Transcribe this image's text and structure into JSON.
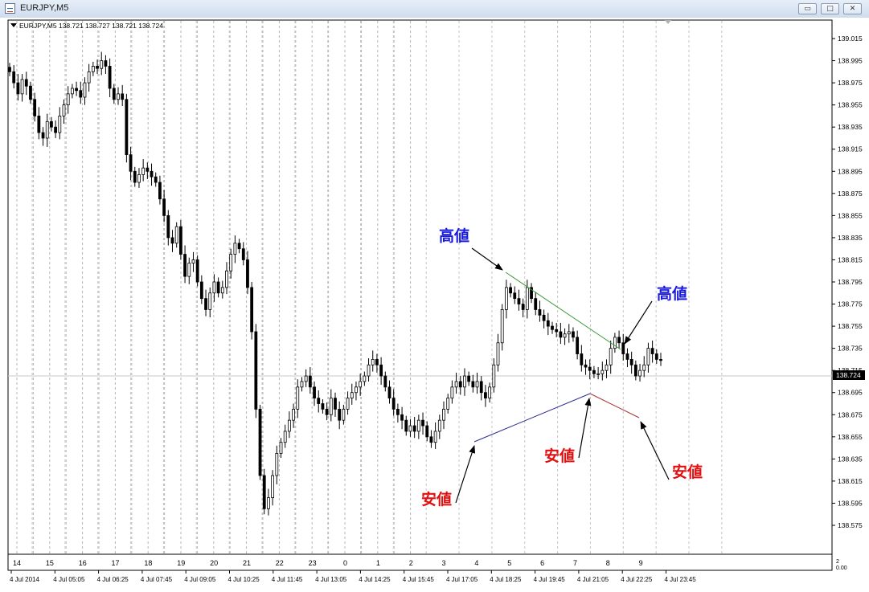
{
  "window": {
    "title": "EURJPY,M5",
    "buttons": {
      "minimize": "▭",
      "maximize": "□",
      "close": "✕"
    }
  },
  "header": {
    "label": "EURJPY,M5  138.721 138.727 138.721 138.724",
    "dropdown_icon": "triangle-down-icon"
  },
  "current_price_label": "138.724",
  "price_axis": {
    "ticks": [
      "139.015",
      "138.995",
      "138.975",
      "138.955",
      "138.935",
      "138.915",
      "138.895",
      "138.875",
      "138.855",
      "138.835",
      "138.815",
      "138.795",
      "138.775",
      "138.755",
      "138.735",
      "138.715",
      "138.695",
      "138.675",
      "138.655",
      "138.635",
      "138.615",
      "138.595",
      "138.575"
    ]
  },
  "indicator_scale": {
    "top": "2",
    "bottom": "0.00"
  },
  "hour_axis": {
    "labels": [
      "14",
      "15",
      "16",
      "17",
      "18",
      "19",
      "20",
      "21",
      "22",
      "23",
      "0",
      "1",
      "2",
      "3",
      "4",
      "5",
      "6",
      "7",
      "8",
      "9"
    ]
  },
  "time_axis": {
    "labels": [
      "4 Jul 2014",
      "4 Jul 05:05",
      "4 Jul 06:25",
      "4 Jul 07:45",
      "4 Jul 09:05",
      "4 Jul 10:25",
      "4 Jul 11:45",
      "4 Jul 13:05",
      "4 Jul 14:25",
      "4 Jul 15:45",
      "4 Jul 17:05",
      "4 Jul 18:25",
      "4 Jul 19:45",
      "4 Jul 21:05",
      "4 Jul 22:25",
      "4 Jul 23:45"
    ]
  },
  "annotations": {
    "high1": "高値",
    "high2": "高値",
    "low1": "安値",
    "low2": "安値",
    "low3": "安値"
  },
  "colors": {
    "high_text": "#1a1adc",
    "low_text": "#e01010",
    "green_trendline": "#3a9a3a",
    "blue_trendline": "#2c2c90",
    "red_trendline": "#a83232",
    "candles": "#000000",
    "grid": "#b5b5b5"
  },
  "chart_data": {
    "type": "candlestick",
    "symbol": "EURJPY",
    "timeframe": "M5",
    "last_price": 138.724,
    "ylim": [
      138.565,
      139.025
    ],
    "closes": [
      138.985,
      138.975,
      138.965,
      138.978,
      138.972,
      138.96,
      138.945,
      138.93,
      138.925,
      138.94,
      138.935,
      138.93,
      138.945,
      138.955,
      138.965,
      138.97,
      138.968,
      138.962,
      138.975,
      138.985,
      138.99,
      138.988,
      138.995,
      138.99,
      138.97,
      138.96,
      138.965,
      138.96,
      138.91,
      138.895,
      138.885,
      138.892,
      138.898,
      138.895,
      138.89,
      138.885,
      138.87,
      138.855,
      138.835,
      138.83,
      138.845,
      138.82,
      138.8,
      138.812,
      138.815,
      138.795,
      138.78,
      138.77,
      138.785,
      138.795,
      138.785,
      138.79,
      138.805,
      138.82,
      138.83,
      138.825,
      138.815,
      138.79,
      138.75,
      138.68,
      138.62,
      138.59,
      138.6,
      138.62,
      138.64,
      138.65,
      138.66,
      138.67,
      138.68,
      138.7,
      138.705,
      138.71,
      138.7,
      138.69,
      138.685,
      138.68,
      138.675,
      138.69,
      138.68,
      138.67,
      138.68,
      138.69,
      138.695,
      138.7,
      138.705,
      138.71,
      138.72,
      138.725,
      138.72,
      138.71,
      138.7,
      138.69,
      138.68,
      138.675,
      138.67,
      138.66,
      138.665,
      138.66,
      138.67,
      138.665,
      138.655,
      138.65,
      138.66,
      138.67,
      138.68,
      138.69,
      138.7,
      138.705,
      138.7,
      138.71,
      138.705,
      138.7,
      138.705,
      138.695,
      138.69,
      138.7,
      138.72,
      138.74,
      138.77,
      138.79,
      138.785,
      138.78,
      138.775,
      138.77,
      138.79,
      138.78,
      138.77,
      138.765,
      138.76,
      138.755,
      138.752,
      138.75,
      138.745,
      138.748,
      138.75,
      138.745,
      138.73,
      138.72,
      138.718,
      138.715,
      138.712,
      138.712,
      138.715,
      138.72,
      138.735,
      138.745,
      138.74,
      138.73,
      138.725,
      138.72,
      138.71,
      138.715,
      138.72,
      138.735,
      138.73,
      138.725,
      138.724
    ]
  }
}
